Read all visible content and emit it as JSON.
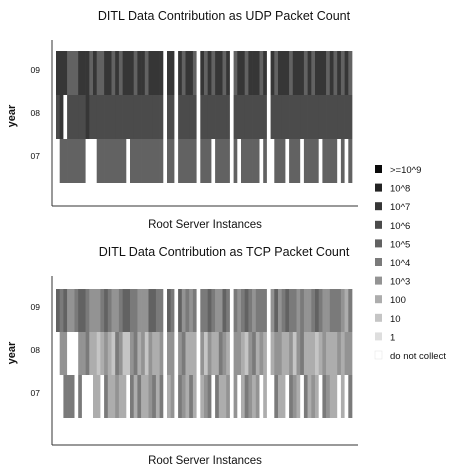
{
  "chart_data": {
    "type": "heatmap",
    "panels": [
      {
        "title": "DITL Data Contribution as UDP Packet Count",
        "xlabel": "Root Server Instances",
        "ylabel": "year",
        "rows": [
          "09",
          "08",
          "07"
        ],
        "levels": [
          [
            8,
            8,
            8,
            6,
            6,
            6,
            8,
            8,
            8,
            6,
            8,
            6,
            6,
            8,
            8,
            6,
            8,
            6,
            8,
            8,
            8,
            6,
            8,
            8,
            6,
            8,
            8,
            8,
            8,
            0,
            8,
            8,
            0,
            8,
            6,
            8,
            8,
            6,
            0,
            8,
            6,
            8,
            6,
            8,
            8,
            6,
            8,
            0,
            6,
            8,
            8,
            6,
            8,
            8,
            8,
            6,
            8,
            0,
            8,
            6,
            8,
            8,
            8,
            6,
            8,
            8,
            8,
            6,
            8,
            6,
            8,
            8,
            8,
            6,
            8,
            6,
            8,
            6,
            8,
            6
          ],
          [
            7,
            8,
            0,
            7,
            7,
            7,
            7,
            7,
            8,
            7,
            7,
            7,
            7,
            7,
            7,
            7,
            7,
            7,
            7,
            7,
            7,
            7,
            7,
            7,
            7,
            7,
            7,
            7,
            7,
            0,
            7,
            7,
            0,
            7,
            7,
            7,
            7,
            7,
            0,
            7,
            7,
            7,
            7,
            7,
            7,
            7,
            7,
            0,
            7,
            7,
            7,
            7,
            7,
            7,
            7,
            7,
            7,
            0,
            7,
            7,
            7,
            7,
            7,
            7,
            7,
            7,
            7,
            7,
            7,
            7,
            7,
            7,
            7,
            7,
            7,
            7,
            7,
            7,
            7,
            7
          ],
          [
            0,
            6,
            6,
            6,
            6,
            6,
            6,
            6,
            0,
            0,
            0,
            6,
            6,
            6,
            6,
            6,
            6,
            6,
            6,
            0,
            6,
            6,
            6,
            6,
            6,
            6,
            6,
            6,
            6,
            0,
            6,
            6,
            0,
            6,
            6,
            6,
            6,
            6,
            0,
            6,
            6,
            6,
            0,
            6,
            6,
            6,
            6,
            0,
            6,
            0,
            6,
            6,
            6,
            6,
            6,
            0,
            6,
            0,
            0,
            6,
            6,
            6,
            0,
            6,
            6,
            6,
            0,
            6,
            6,
            6,
            6,
            0,
            6,
            6,
            6,
            6,
            0,
            6,
            0,
            6
          ]
        ]
      },
      {
        "title": "DITL Data Contribution as TCP Packet Count",
        "xlabel": "Root Server Instances",
        "ylabel": "year",
        "rows": [
          "09",
          "08",
          "07"
        ],
        "levels": [
          [
            6,
            5,
            6,
            4,
            4,
            5,
            6,
            6,
            5,
            4,
            4,
            4,
            5,
            6,
            5,
            4,
            4,
            5,
            6,
            6,
            5,
            5,
            4,
            4,
            4,
            6,
            6,
            5,
            5,
            0,
            6,
            5,
            0,
            6,
            4,
            5,
            4,
            5,
            0,
            5,
            5,
            6,
            5,
            4,
            4,
            6,
            5,
            0,
            5,
            4,
            5,
            6,
            5,
            4,
            5,
            5,
            5,
            0,
            4,
            6,
            4,
            5,
            6,
            5,
            5,
            4,
            5,
            4,
            4,
            5,
            6,
            5,
            4,
            4,
            5,
            5,
            5,
            4,
            3,
            5
          ],
          [
            0,
            4,
            4,
            0,
            0,
            0,
            4,
            4,
            5,
            3,
            3,
            2,
            3,
            4,
            3,
            2,
            5,
            4,
            2,
            2,
            4,
            5,
            3,
            4,
            2,
            4,
            3,
            3,
            4,
            0,
            4,
            4,
            0,
            4,
            5,
            3,
            3,
            3,
            0,
            4,
            2,
            4,
            3,
            3,
            5,
            4,
            3,
            0,
            4,
            4,
            3,
            2,
            4,
            5,
            3,
            4,
            3,
            0,
            3,
            4,
            4,
            3,
            3,
            4,
            2,
            4,
            5,
            3,
            3,
            3,
            2,
            3,
            4,
            3,
            3,
            3,
            4,
            3,
            4,
            4
          ],
          [
            0,
            0,
            5,
            5,
            5,
            0,
            5,
            0,
            0,
            0,
            3,
            3,
            0,
            5,
            3,
            3,
            4,
            3,
            3,
            0,
            5,
            3,
            5,
            3,
            3,
            4,
            5,
            3,
            5,
            0,
            3,
            4,
            0,
            5,
            4,
            3,
            5,
            3,
            0,
            3,
            4,
            5,
            0,
            5,
            3,
            3,
            4,
            0,
            4,
            0,
            3,
            5,
            4,
            3,
            4,
            0,
            3,
            0,
            0,
            5,
            3,
            3,
            0,
            5,
            4,
            3,
            0,
            5,
            3,
            4,
            3,
            0,
            5,
            4,
            3,
            3,
            0,
            3,
            0,
            5
          ]
        ]
      }
    ],
    "legend": {
      "title": "",
      "items": [
        ">=10^9",
        "10^8",
        "10^7",
        "10^6",
        "10^5",
        "10^4",
        "10^3",
        "100",
        "10",
        "1",
        "do not collect"
      ],
      "colors": [
        "#0a0a0a",
        "#232323",
        "#363636",
        "#4b4b4b",
        "#626262",
        "#7a7a7a",
        "#939393",
        "#adadad",
        "#c5c5c5",
        "#dedede",
        "#ffffff"
      ]
    },
    "level_key": "0 = do not collect; 1 = 1; 2 = 10; 3 = 100; 4 = 10^3; 5 = 10^4; 6 = 10^5; 7 = 10^6; 8 = 10^7"
  }
}
